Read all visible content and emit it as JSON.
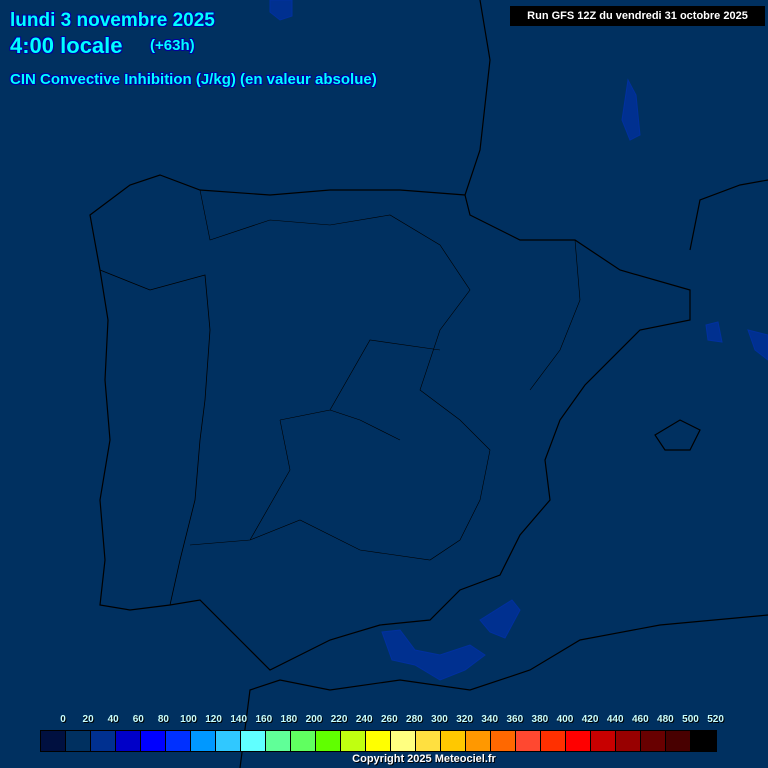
{
  "header": {
    "date": "lundi 3 novembre 2025",
    "time": "4:00 locale",
    "lead": "(+63h)",
    "parameter": "CIN Convective Inhibition (J/kg) (en valeur absolue)",
    "run": "Run GFS 12Z du vendredi 31 octobre 2025"
  },
  "legend": {
    "labels": [
      "0",
      "20",
      "40",
      "60",
      "80",
      "100",
      "120",
      "140",
      "160",
      "180",
      "200",
      "220",
      "240",
      "260",
      "280",
      "300",
      "320",
      "340",
      "360",
      "380",
      "400",
      "420",
      "440",
      "460",
      "480",
      "500",
      "520"
    ],
    "colors": [
      "#001040",
      "#003060",
      "#003090",
      "#0000c8",
      "#0000ff",
      "#0030ff",
      "#0098ff",
      "#30c8ff",
      "#60ffff",
      "#60ff98",
      "#60ff60",
      "#60ff00",
      "#c0ff10",
      "#ffff00",
      "#ffff80",
      "#ffe040",
      "#ffc800",
      "#ff9800",
      "#ff6800",
      "#ff4830",
      "#ff3000",
      "#ff0000",
      "#c80000",
      "#980000",
      "#680000",
      "#480000",
      "#000000"
    ]
  },
  "copyright": "Copyright 2025 Meteociel.fr",
  "colors": {
    "background": "#003060",
    "title": "#00ffff",
    "cin_low": "#003090"
  }
}
